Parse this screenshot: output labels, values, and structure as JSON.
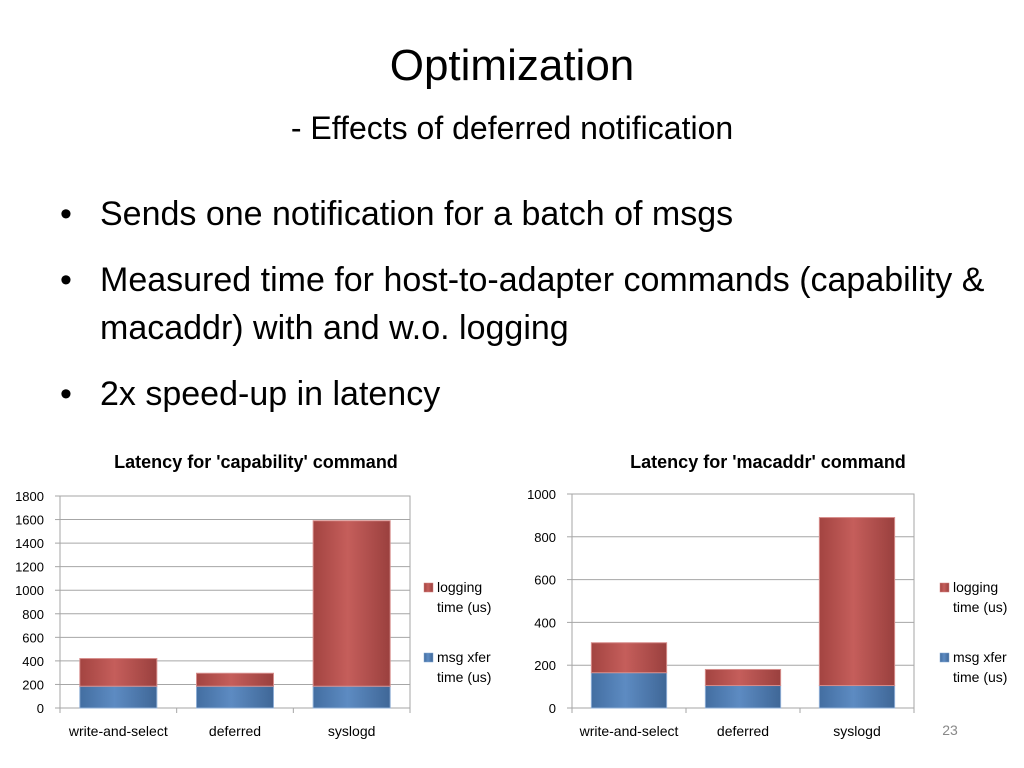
{
  "slide": {
    "title": "Optimization",
    "subtitle": "- Effects of deferred notification",
    "bullets": [
      "Sends one notification for a batch of msgs",
      "Measured time for host-to-adapter commands (capability & macaddr) with and w.o. logging",
      "2x speed-up in latency"
    ],
    "bullet_glyph": "•",
    "page_number": "23"
  },
  "colors": {
    "msg_xfer": "#4f81bd",
    "logging": "#c0504d"
  },
  "chart_data": [
    {
      "type": "bar",
      "stacked": true,
      "title": "Latency for 'capability' command",
      "categories": [
        "write-and-select",
        "deferred",
        "syslogd"
      ],
      "series": [
        {
          "name": "msg xfer time (us)",
          "values": [
            185,
            185,
            185
          ]
        },
        {
          "name": "logging time (us)",
          "values": [
            235,
            110,
            1405
          ]
        }
      ],
      "ylim": [
        0,
        1800
      ],
      "yticks": [
        0,
        200,
        400,
        600,
        800,
        1000,
        1200,
        1400,
        1600,
        1800
      ],
      "legend_labels": [
        [
          "logging",
          "time (us)"
        ],
        [
          "msg xfer",
          "time (us)"
        ]
      ],
      "grid": true,
      "legend": "right"
    },
    {
      "type": "bar",
      "stacked": true,
      "title": "Latency for 'macaddr' command",
      "categories": [
        "write-and-select",
        "deferred",
        "syslogd"
      ],
      "series": [
        {
          "name": "msg xfer time (us)",
          "values": [
            165,
            105,
            105
          ]
        },
        {
          "name": "logging time (us)",
          "values": [
            140,
            75,
            785
          ]
        }
      ],
      "ylim": [
        0,
        1000
      ],
      "yticks": [
        0,
        200,
        400,
        600,
        800,
        1000
      ],
      "legend_labels": [
        [
          "logging",
          "time (us)"
        ],
        [
          "msg xfer",
          "time (us)"
        ]
      ],
      "grid": true,
      "legend": "right"
    }
  ]
}
